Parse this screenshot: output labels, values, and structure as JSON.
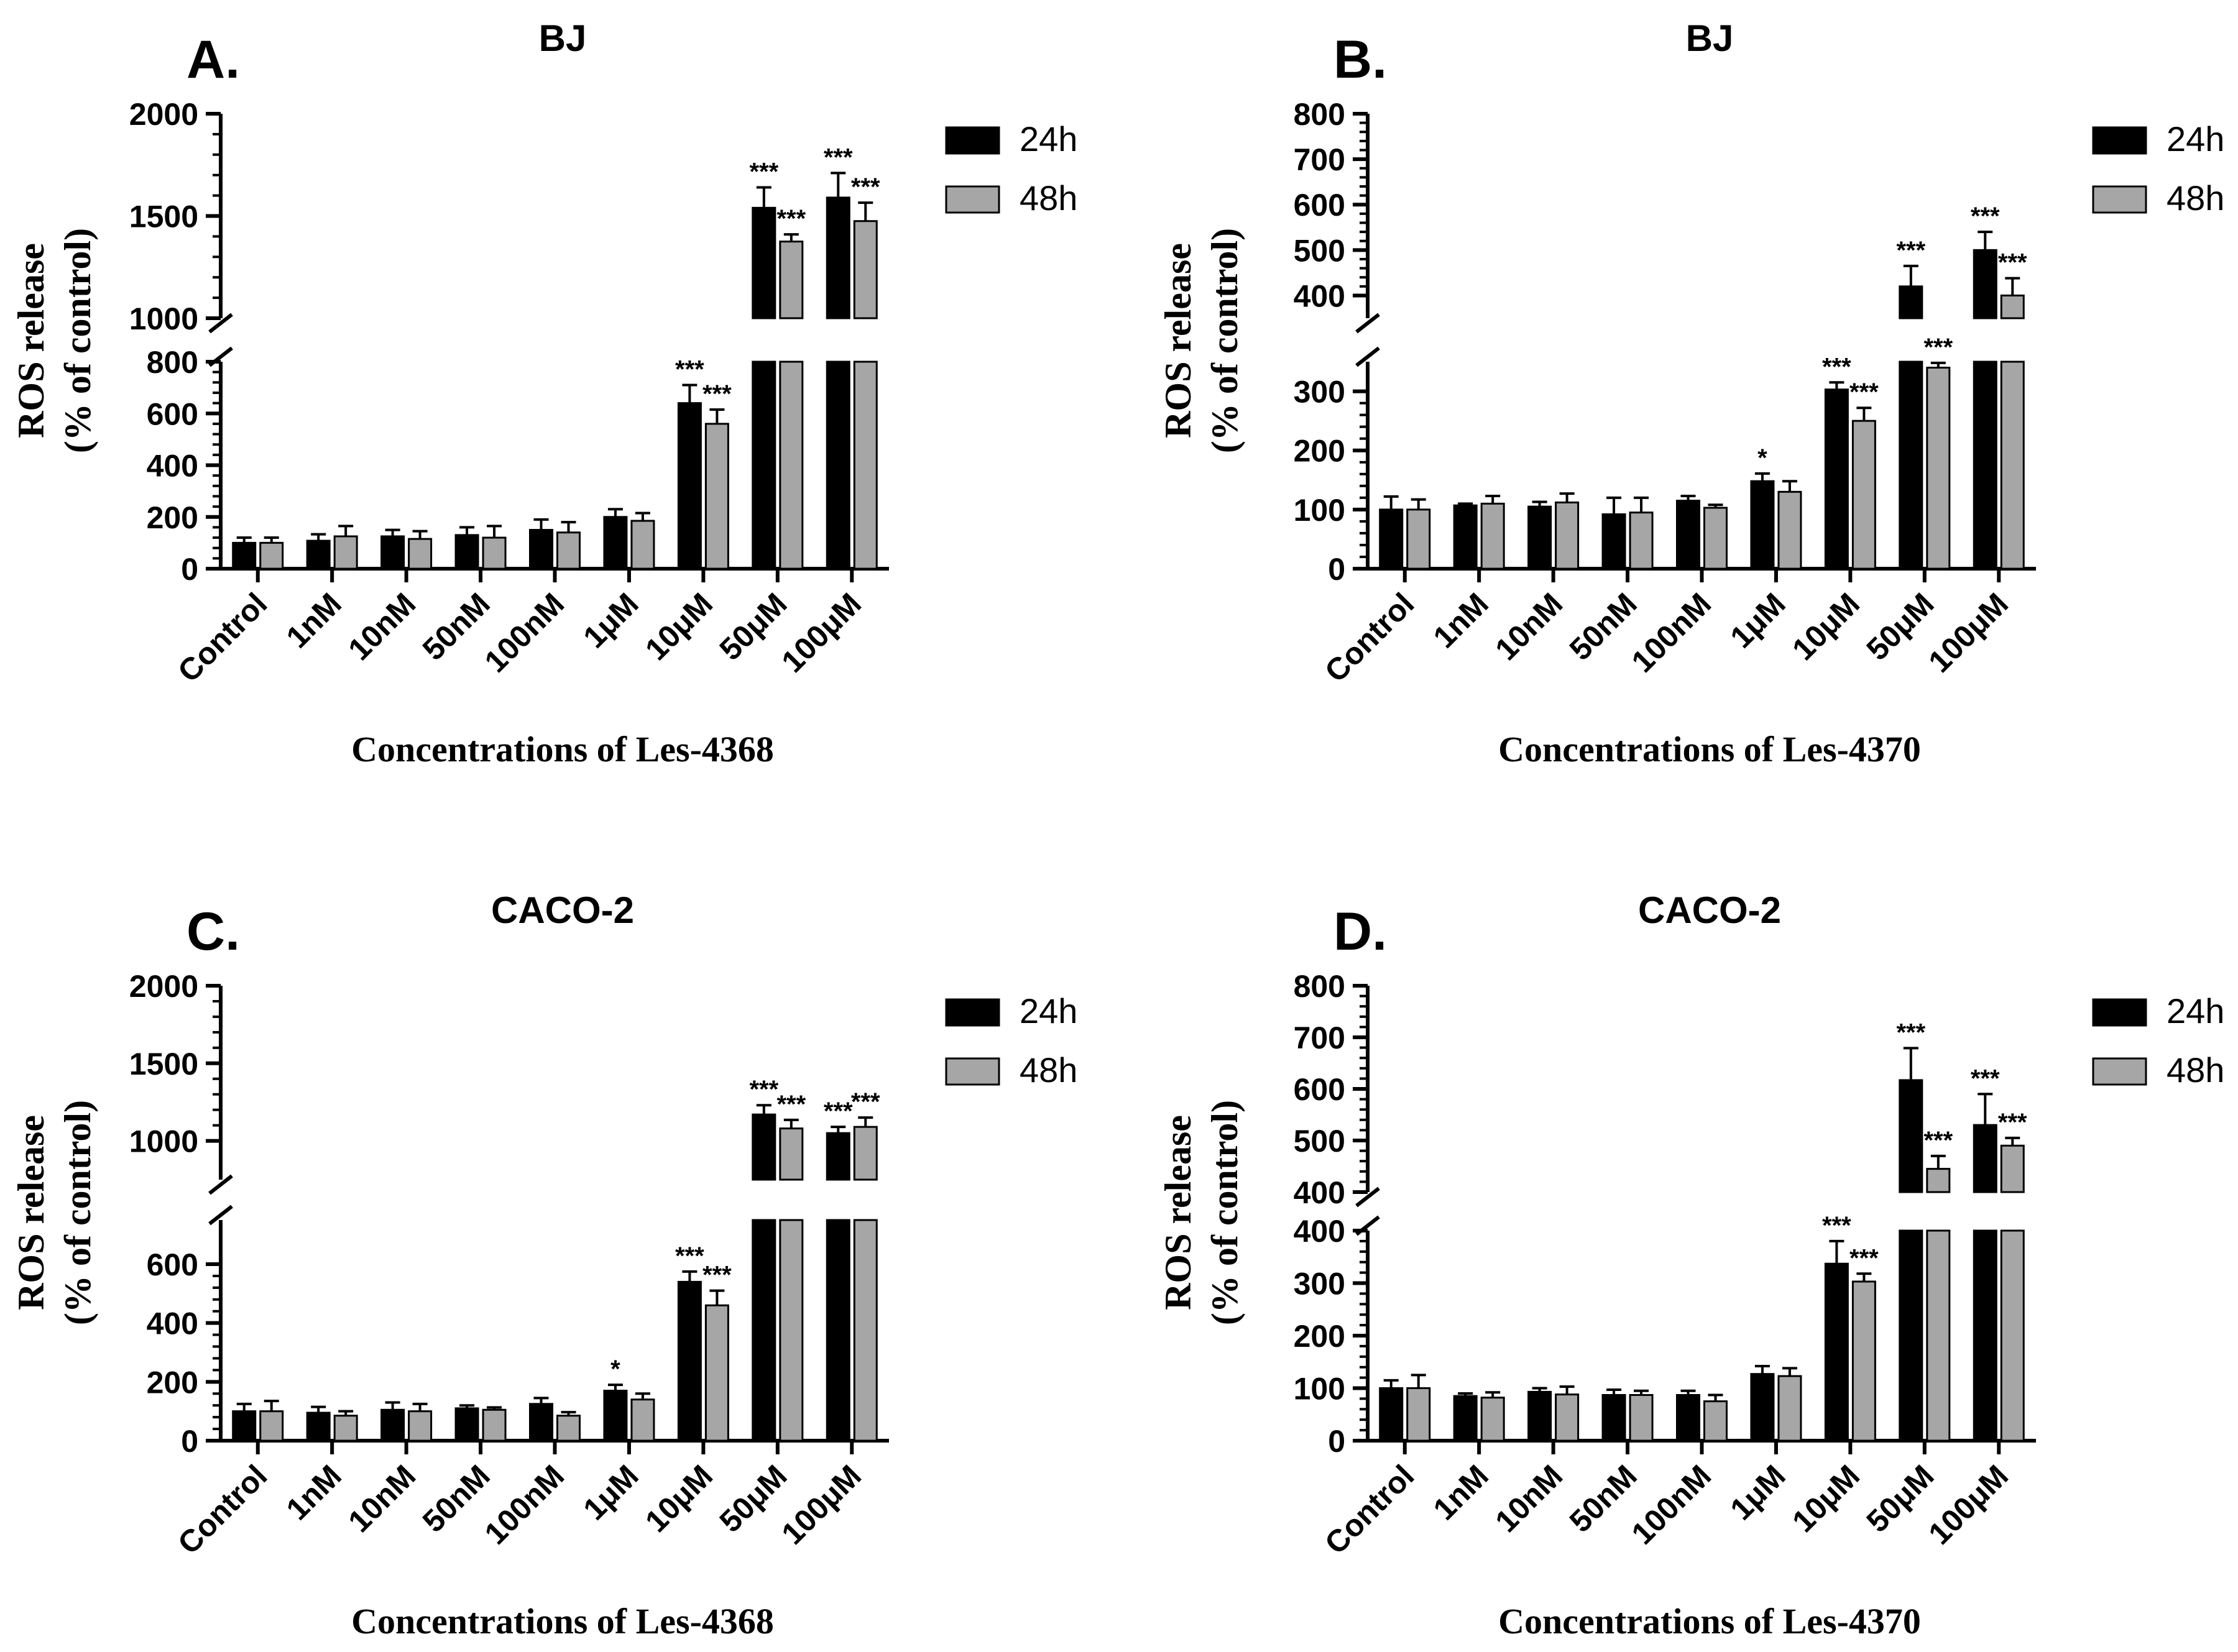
{
  "figure": {
    "legend_labels": [
      "24h",
      "48h"
    ],
    "colors": {
      "series_24h": "#000000",
      "series_48h": "#a6a6a6",
      "axis": "#000000",
      "background": "#ffffff"
    }
  },
  "chart_data": [
    {
      "panel_label": "A.",
      "type": "bar",
      "title": "BJ",
      "xlabel": "Concentrations of Les-4368",
      "ylabel": [
        "ROS release",
        "(% of control)"
      ],
      "categories": [
        "Control",
        "1nM",
        "10nM",
        "50nM",
        "100nM",
        "1μM",
        "10μM",
        "50μM",
        "100μM"
      ],
      "series": [
        {
          "name": "24h",
          "values": [
            100,
            108,
            125,
            130,
            150,
            200,
            640,
            1540,
            1590
          ],
          "errors": [
            20,
            25,
            25,
            30,
            40,
            30,
            70,
            100,
            120
          ],
          "significance": [
            "",
            "",
            "",
            "",
            "",
            "",
            "***",
            "***",
            "***"
          ]
        },
        {
          "name": "48h",
          "values": [
            100,
            125,
            115,
            120,
            140,
            185,
            560,
            1375,
            1475
          ],
          "errors": [
            20,
            40,
            30,
            45,
            40,
            30,
            55,
            35,
            90
          ],
          "significance": [
            "",
            "",
            "",
            "",
            "",
            "",
            "***",
            "***",
            "***"
          ]
        }
      ],
      "y_break": [
        800,
        1000
      ],
      "ylim_lower": [
        0,
        800
      ],
      "yticks_lower": [
        0,
        200,
        400,
        600,
        800
      ],
      "ylim_upper": [
        1000,
        2000
      ],
      "yticks_upper": [
        1000,
        1500,
        2000
      ],
      "legend": "top-right"
    },
    {
      "panel_label": "B.",
      "type": "bar",
      "title": "BJ",
      "xlabel": "Concentrations of Les-4370",
      "ylabel": [
        "ROS release",
        "(% of control)"
      ],
      "categories": [
        "Control",
        "1nM",
        "10nM",
        "50nM",
        "100nM",
        "1μM",
        "10μM",
        "50μM",
        "100μM"
      ],
      "series": [
        {
          "name": "24h",
          "values": [
            100,
            107,
            105,
            92,
            115,
            148,
            303,
            420,
            500
          ],
          "errors": [
            22,
            3,
            8,
            28,
            8,
            13,
            12,
            45,
            40
          ],
          "significance": [
            "",
            "",
            "",
            "",
            "",
            "*",
            "***",
            "***",
            "***"
          ]
        },
        {
          "name": "48h",
          "values": [
            100,
            110,
            112,
            95,
            103,
            130,
            250,
            340,
            400
          ],
          "errors": [
            17,
            13,
            15,
            25,
            5,
            18,
            22,
            8,
            38
          ],
          "significance": [
            "",
            "",
            "",
            "",
            "",
            "",
            "***",
            "***",
            "***"
          ]
        }
      ],
      "y_break": [
        350,
        350
      ],
      "ylim_lower": [
        0,
        350
      ],
      "yticks_lower": [
        0,
        100,
        200,
        300
      ],
      "ylim_upper": [
        350,
        800
      ],
      "yticks_upper": [
        400,
        500,
        600,
        700,
        800
      ],
      "legend": "top-right"
    },
    {
      "panel_label": "C.",
      "type": "bar",
      "title": "CACO-2",
      "xlabel": "Concentrations of Les-4368",
      "ylabel": [
        "ROS release",
        "(% of control)"
      ],
      "categories": [
        "Control",
        "1nM",
        "10nM",
        "50nM",
        "100nM",
        "1μM",
        "10μM",
        "50μM",
        "100μM"
      ],
      "series": [
        {
          "name": "24h",
          "values": [
            100,
            95,
            105,
            110,
            125,
            170,
            540,
            1170,
            1050
          ],
          "errors": [
            25,
            20,
            25,
            10,
            20,
            20,
            35,
            60,
            40
          ],
          "significance": [
            "",
            "",
            "",
            "",
            "",
            "*",
            "***",
            "***",
            "***"
          ]
        },
        {
          "name": "48h",
          "values": [
            100,
            85,
            100,
            105,
            85,
            140,
            460,
            1080,
            1090
          ],
          "errors": [
            35,
            15,
            25,
            8,
            12,
            20,
            50,
            55,
            60
          ],
          "significance": [
            "",
            "",
            "",
            "",
            "",
            "",
            "***",
            "***",
            "***"
          ]
        }
      ],
      "y_break": [
        750,
        750
      ],
      "ylim_lower": [
        0,
        750
      ],
      "yticks_lower": [
        0,
        200,
        400,
        600
      ],
      "ylim_upper": [
        750,
        2000
      ],
      "yticks_upper": [
        1000,
        1500,
        2000
      ],
      "legend": "top-right"
    },
    {
      "panel_label": "D.",
      "type": "bar",
      "title": "CACO-2",
      "xlabel": "Concentrations of Les-4370",
      "ylabel": [
        "ROS release",
        "(% of control)"
      ],
      "categories": [
        "Control",
        "1nM",
        "10nM",
        "50nM",
        "100nM",
        "1μM",
        "10μM",
        "50μM",
        "100μM"
      ],
      "series": [
        {
          "name": "24h",
          "values": [
            100,
            85,
            93,
            87,
            87,
            127,
            337,
            617,
            530
          ],
          "errors": [
            15,
            5,
            7,
            10,
            8,
            15,
            43,
            62,
            60
          ],
          "significance": [
            "",
            "",
            "",
            "",
            "",
            "",
            "***",
            "***",
            "***"
          ]
        },
        {
          "name": "48h",
          "values": [
            100,
            82,
            88,
            87,
            75,
            123,
            303,
            445,
            490
          ],
          "errors": [
            25,
            10,
            15,
            8,
            12,
            15,
            15,
            25,
            15
          ],
          "significance": [
            "",
            "",
            "",
            "",
            "",
            "",
            "***",
            "***",
            "***"
          ]
        }
      ],
      "y_break": [
        400,
        400
      ],
      "ylim_lower": [
        0,
        400
      ],
      "yticks_lower": [
        0,
        100,
        200,
        300,
        400
      ],
      "ylim_upper": [
        400,
        800
      ],
      "yticks_upper": [
        400,
        500,
        600,
        700,
        800
      ],
      "legend": "top-right"
    }
  ]
}
